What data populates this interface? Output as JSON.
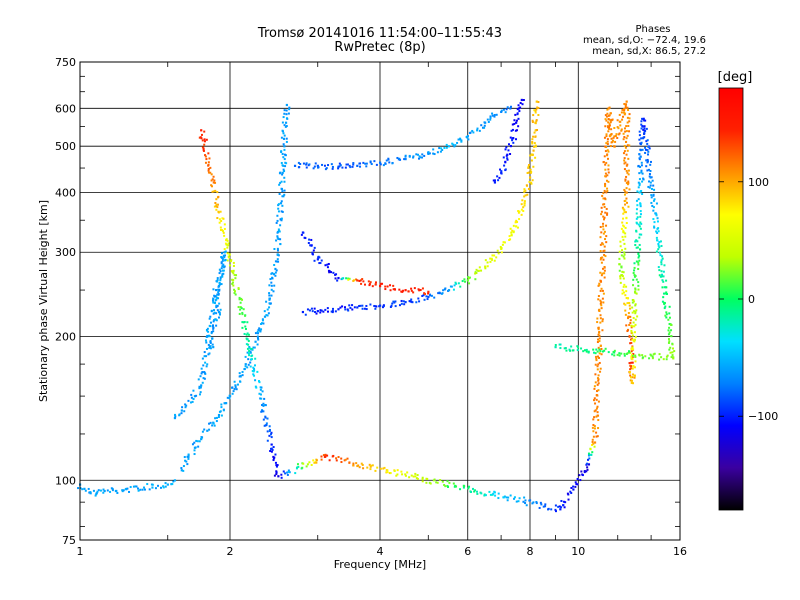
{
  "header": {
    "title_line1": "Tromsø 20141016 11:54:00–11:55:43",
    "title_line2": "RwPretec (8p)",
    "phases_heading": "Phases",
    "stats_o": "mean, sd,O: −72.4, 19.6",
    "stats_x": "mean, sd,X: 86.5, 27.2"
  },
  "chart_data": {
    "type": "scatter",
    "xlabel": "Frequency [MHz]",
    "ylabel": "Stationary phase Virtual Height [km]",
    "x_scale": "log",
    "y_scale": "log",
    "xlim": [
      1,
      16
    ],
    "ylim": [
      75,
      750
    ],
    "x_ticks": [
      1,
      2,
      4,
      6,
      8,
      10,
      16
    ],
    "y_ticks": [
      75,
      100,
      200,
      300,
      400,
      500,
      600,
      750
    ],
    "grid": true,
    "colorbar": {
      "label": "[deg]",
      "range": [
        -180,
        180
      ],
      "ticks": [
        -100,
        0,
        100
      ],
      "colors": [
        "#000000",
        "#3a00a0",
        "#0000ff",
        "#0080ff",
        "#00e0ff",
        "#00ff60",
        "#c0ff00",
        "#ffff00",
        "#ff9000",
        "#ff2000",
        "#ff0000"
      ]
    },
    "series": [
      {
        "role": "o-mode E-region low",
        "points": [
          [
            1.0,
            98,
            -60
          ],
          [
            1.02,
            96,
            -60
          ],
          [
            1.05,
            94,
            -60
          ],
          [
            1.08,
            94,
            -60
          ],
          [
            1.12,
            95,
            -60
          ],
          [
            1.18,
            95,
            -60
          ],
          [
            1.5,
            98,
            -55
          ],
          [
            1.55,
            100,
            -55
          ]
        ]
      },
      {
        "role": "o-mode trace lower branch",
        "points": [
          [
            1.6,
            105,
            -60
          ],
          [
            1.65,
            112,
            -60
          ],
          [
            1.7,
            117,
            -60
          ],
          [
            1.75,
            122,
            -60
          ],
          [
            1.8,
            127,
            -60
          ],
          [
            1.85,
            132,
            -60
          ],
          [
            1.9,
            137,
            -60
          ],
          [
            1.95,
            145,
            -60
          ],
          [
            2.0,
            150,
            -60
          ],
          [
            2.05,
            158,
            -60
          ],
          [
            2.1,
            165,
            -60
          ],
          [
            2.15,
            175,
            -60
          ],
          [
            2.2,
            185,
            -60
          ],
          [
            2.25,
            195,
            -60
          ],
          [
            2.3,
            205,
            -60
          ],
          [
            2.35,
            220,
            -60
          ],
          [
            2.4,
            240,
            -60
          ],
          [
            2.45,
            270,
            -60
          ],
          [
            2.5,
            320,
            -60
          ],
          [
            2.53,
            380,
            -60
          ],
          [
            2.55,
            440,
            -60
          ],
          [
            2.57,
            500,
            -60
          ],
          [
            2.59,
            560,
            -60
          ],
          [
            2.6,
            610,
            -60
          ]
        ]
      },
      {
        "role": "o-mode early trace",
        "points": [
          [
            1.55,
            135,
            -60
          ],
          [
            1.6,
            140,
            -60
          ],
          [
            1.7,
            150,
            -60
          ],
          [
            1.75,
            158,
            -60
          ],
          [
            1.95,
            300,
            -60
          ],
          [
            1.9,
            255,
            -60
          ],
          [
            1.85,
            240,
            -60
          ],
          [
            1.9,
            225,
            -60
          ],
          [
            1.8,
            200,
            -60
          ],
          [
            1.85,
            190,
            -60
          ]
        ]
      },
      {
        "role": "o-mode F-layer upper branch",
        "points": [
          [
            2.7,
            455,
            -80
          ],
          [
            3.0,
            455,
            -85
          ],
          [
            3.3,
            453,
            -85
          ],
          [
            3.6,
            455,
            -80
          ],
          [
            4.0,
            462,
            -75
          ],
          [
            4.5,
            470,
            -70
          ],
          [
            5.0,
            482,
            -65
          ],
          [
            5.5,
            500,
            -50
          ],
          [
            6.0,
            525,
            -60
          ],
          [
            6.5,
            560,
            -65
          ],
          [
            7.0,
            590,
            -70
          ],
          [
            7.3,
            600,
            -75
          ]
        ]
      },
      {
        "role": "x-mode F-layer lower branch",
        "points": [
          [
            2.8,
            225,
            -100
          ],
          [
            3.0,
            226,
            -100
          ],
          [
            3.3,
            228,
            -100
          ],
          [
            3.6,
            230,
            -95
          ],
          [
            4.0,
            232,
            -95
          ],
          [
            4.5,
            236,
            -90
          ],
          [
            5.0,
            242,
            -85
          ],
          [
            5.5,
            250,
            -60
          ],
          [
            6.0,
            262,
            20
          ],
          [
            6.5,
            280,
            50
          ],
          [
            7.0,
            305,
            60
          ],
          [
            7.5,
            340,
            70
          ],
          [
            7.8,
            380,
            80
          ],
          [
            8.0,
            430,
            90
          ],
          [
            8.1,
            480,
            90
          ],
          [
            8.2,
            560,
            90
          ],
          [
            8.25,
            620,
            90
          ]
        ]
      },
      {
        "role": "oblique echo branch",
        "points": [
          [
            2.8,
            330,
            -100
          ],
          [
            3.0,
            290,
            -100
          ],
          [
            3.3,
            265,
            -110
          ],
          [
            3.6,
            262,
            140
          ],
          [
            4.0,
            255,
            150
          ],
          [
            4.5,
            250,
            150
          ],
          [
            5.0,
            248,
            140
          ]
        ]
      },
      {
        "role": "o-mode cusp",
        "points": [
          [
            6.8,
            420,
            -100
          ],
          [
            7.0,
            440,
            -100
          ],
          [
            7.2,
            480,
            -105
          ],
          [
            7.4,
            520,
            -105
          ],
          [
            7.5,
            560,
            -110
          ],
          [
            7.6,
            600,
            -110
          ],
          [
            7.7,
            625,
            -110
          ]
        ]
      },
      {
        "role": "isolated echoes",
        "points": [
          [
            1.75,
            540,
            150
          ],
          [
            2.5,
            102,
            -120
          ],
          [
            3.1,
            112,
            140
          ],
          [
            9.2,
            87,
            -100
          ],
          [
            10.5,
            108,
            -120
          ],
          [
            10.8,
            120,
            110
          ],
          [
            11.5,
            600,
            110
          ],
          [
            11.8,
            500,
            110
          ],
          [
            12.5,
            620,
            110
          ],
          [
            12.5,
            400,
            110
          ],
          [
            12.2,
            280,
            20
          ],
          [
            12.6,
            220,
            110
          ],
          [
            12.8,
            180,
            150
          ],
          [
            12.8,
            160,
            90
          ],
          [
            13.5,
            570,
            -100
          ],
          [
            15.5,
            180,
            30
          ],
          [
            9.0,
            190,
            -20
          ]
        ]
      }
    ]
  }
}
